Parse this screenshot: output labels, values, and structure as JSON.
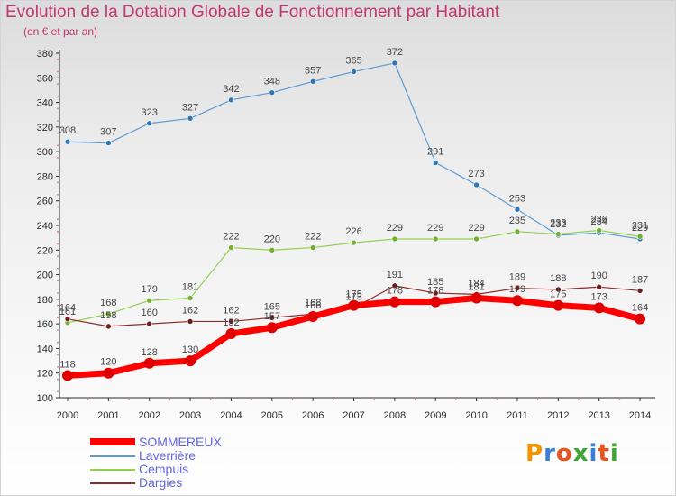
{
  "header": {
    "title": "Evolution de la Dotation Globale de Fonctionnement par Habitant",
    "subtitle": "(en € et par an)"
  },
  "logo": {
    "text": "Proxiti",
    "colors": [
      "#f29400",
      "#3a7fd5",
      "#e8521c",
      "#3fa535",
      "#3a7fd5",
      "#e8521c",
      "#3fa535"
    ]
  },
  "colors": {
    "axis": "#2b2b2b",
    "grid_dots": "#e06a6a",
    "label": "#444444"
  },
  "chart_data": {
    "type": "line",
    "x": [
      "2000",
      "2001",
      "2002",
      "2003",
      "2004",
      "2005",
      "2006",
      "2007",
      "2008",
      "2009",
      "2010",
      "2011",
      "2012",
      "2013",
      "2014"
    ],
    "ylim": [
      100,
      380
    ],
    "yticks": [
      100,
      120,
      140,
      160,
      180,
      200,
      220,
      240,
      260,
      280,
      300,
      320,
      340,
      360,
      380
    ],
    "legend_position": "bottom-left",
    "series": [
      {
        "name": "Laverrière",
        "color": "#5b9bd5",
        "marker": "#2e75b6",
        "width": 1.2,
        "r": 3,
        "values": [
          308,
          307,
          323,
          327,
          342,
          348,
          357,
          365,
          372,
          291,
          273,
          253,
          232,
          234,
          229
        ],
        "labels": [
          "308",
          "307",
          "323",
          "327",
          "342",
          "348",
          "357",
          "365",
          "372",
          "291",
          "273",
          "253",
          "232",
          "234",
          "229"
        ]
      },
      {
        "name": "Cempuis",
        "color": "#92d050",
        "marker": "#70b030",
        "width": 1.2,
        "r": 3,
        "values": [
          161,
          168,
          179,
          181,
          222,
          220,
          222,
          226,
          229,
          229,
          229,
          235,
          233,
          236,
          231
        ],
        "labels": [
          "161",
          "168",
          "179",
          "181",
          "222",
          "220",
          "222",
          "226",
          "229",
          "229",
          "229",
          "235",
          "233",
          "236",
          "231"
        ]
      },
      {
        "name": "Dargies",
        "color": "#8b2c2c",
        "marker": "#6b1c1c",
        "width": 1.2,
        "r": 3,
        "values": [
          164,
          158,
          160,
          162,
          162,
          165,
          168,
          173,
          191,
          185,
          184,
          189,
          188,
          190,
          187
        ],
        "labels": [
          "164",
          "158",
          "160",
          "162",
          "162",
          "165",
          "168",
          "173",
          "191",
          "185",
          "184",
          "189",
          "188",
          "190",
          "187"
        ]
      },
      {
        "name": "SOMMEREUX",
        "color": "#ff0000",
        "marker": "#e00000",
        "width": 7,
        "r": 6,
        "values": [
          118,
          120,
          128,
          130,
          152,
          157,
          166,
          175,
          178,
          178,
          181,
          179,
          175,
          173,
          164
        ],
        "labels": [
          "118",
          "120",
          "128",
          "130",
          "152",
          "157",
          "166",
          "175",
          "178",
          "178",
          "181",
          "179",
          "175",
          "173",
          "164"
        ]
      }
    ],
    "legend_order": [
      "SOMMEREUX",
      "Laverrière",
      "Cempuis",
      "Dargies"
    ]
  }
}
